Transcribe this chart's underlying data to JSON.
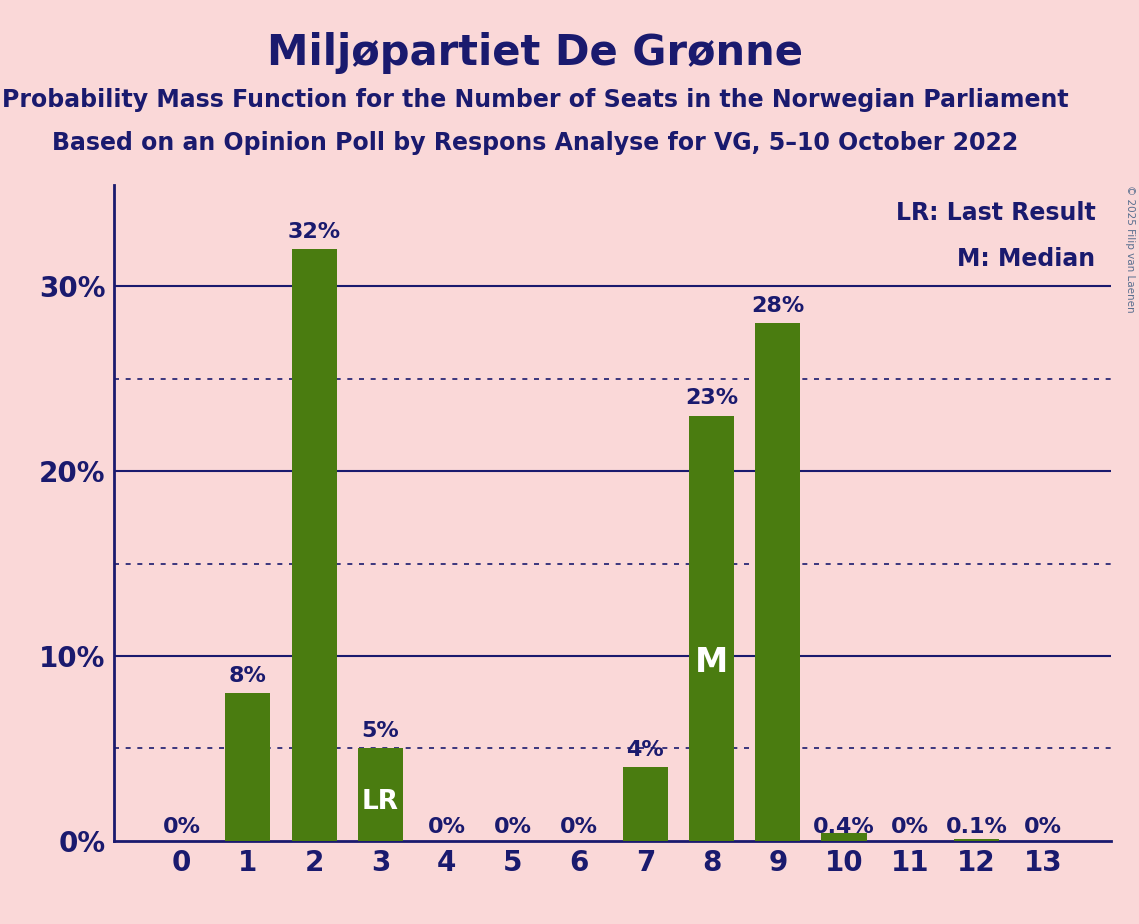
{
  "title": "Miljøpartiet De Grønne",
  "subtitle1": "Probability Mass Function for the Number of Seats in the Norwegian Parliament",
  "subtitle2": "Based on an Opinion Poll by Respons Analyse for VG, 5–10 October 2022",
  "copyright": "© 2025 Filip van Laenen",
  "categories": [
    0,
    1,
    2,
    3,
    4,
    5,
    6,
    7,
    8,
    9,
    10,
    11,
    12,
    13
  ],
  "values": [
    0.0,
    0.08,
    0.32,
    0.05,
    0.0,
    0.0,
    0.0,
    0.04,
    0.23,
    0.28,
    0.004,
    0.0,
    0.001,
    0.0
  ],
  "bar_color": "#4a7c10",
  "background_color": "#fad8d8",
  "title_color": "#1a1a6e",
  "axis_color": "#1a1a6e",
  "label_color": "#1a1a6e",
  "grid_color_solid": "#1a1a6e",
  "grid_color_dotted": "#1a1a6e",
  "copyright_color": "#5a7090",
  "lr_bar": 3,
  "median_bar": 8,
  "ylim": [
    0,
    0.355
  ],
  "yticks_solid": [
    0.0,
    0.1,
    0.2,
    0.3
  ],
  "yticks_dotted": [
    0.05,
    0.15,
    0.25
  ],
  "legend_lr": "LR: Last Result",
  "legend_m": "M: Median",
  "lr_label": "LR",
  "m_label": "M",
  "bar_labels": [
    "0%",
    "8%",
    "32%",
    "5%",
    "0%",
    "0%",
    "0%",
    "4%",
    "23%",
    "28%",
    "0.4%",
    "0%",
    "0.1%",
    "0%"
  ],
  "title_fontsize": 30,
  "subtitle_fontsize": 17,
  "tick_fontsize": 20,
  "bar_label_fontsize": 16,
  "legend_fontsize": 17,
  "bar_width": 0.68
}
